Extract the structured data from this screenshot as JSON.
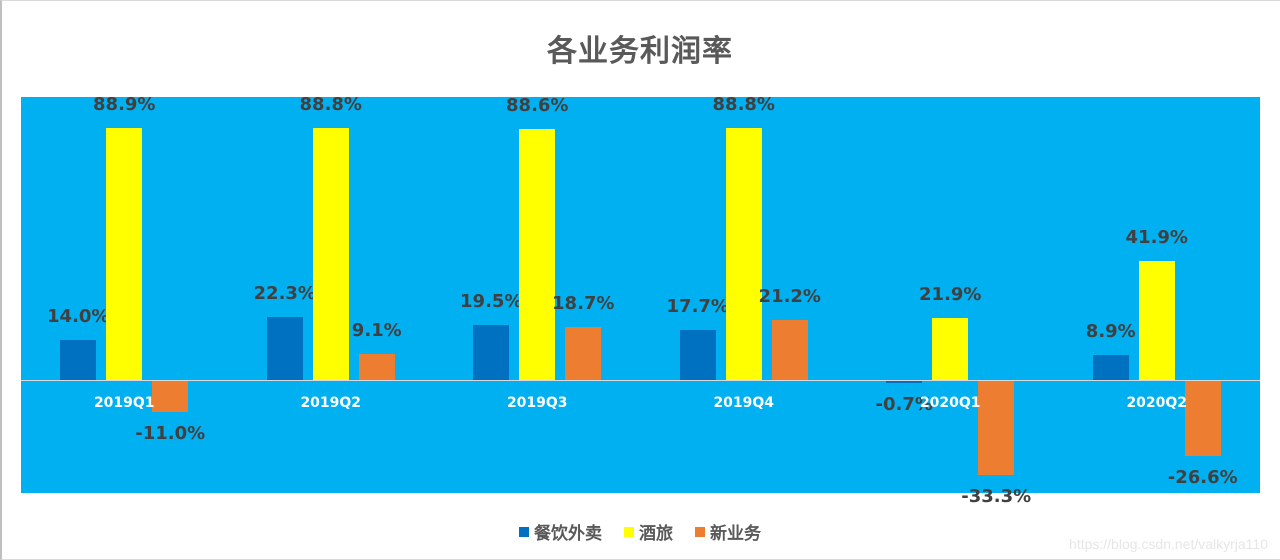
{
  "chart_data": {
    "type": "bar",
    "title": "各业务利润率",
    "xlabel": "",
    "ylabel": "",
    "categories": [
      "2019Q1",
      "2019Q2",
      "2019Q3",
      "2019Q4",
      "2020Q1",
      "2020Q2"
    ],
    "series": [
      {
        "name": "餐饮外卖",
        "color": "#0070c0",
        "values": [
          14.0,
          22.3,
          19.5,
          17.7,
          -0.7,
          8.9
        ]
      },
      {
        "name": "酒旅",
        "color": "#ffff00",
        "values": [
          88.9,
          88.8,
          88.6,
          88.8,
          21.9,
          41.9
        ]
      },
      {
        "name": "新业务",
        "color": "#ed7d31",
        "values": [
          -11.0,
          9.1,
          18.7,
          21.2,
          -33.3,
          -26.6
        ]
      }
    ],
    "data_labels": true,
    "label_format": "{v}%",
    "grid": false,
    "legend_position": "bottom",
    "plot_background": "#00b0f0"
  },
  "watermark": "https://blog.csdn.net/valkyrja110"
}
